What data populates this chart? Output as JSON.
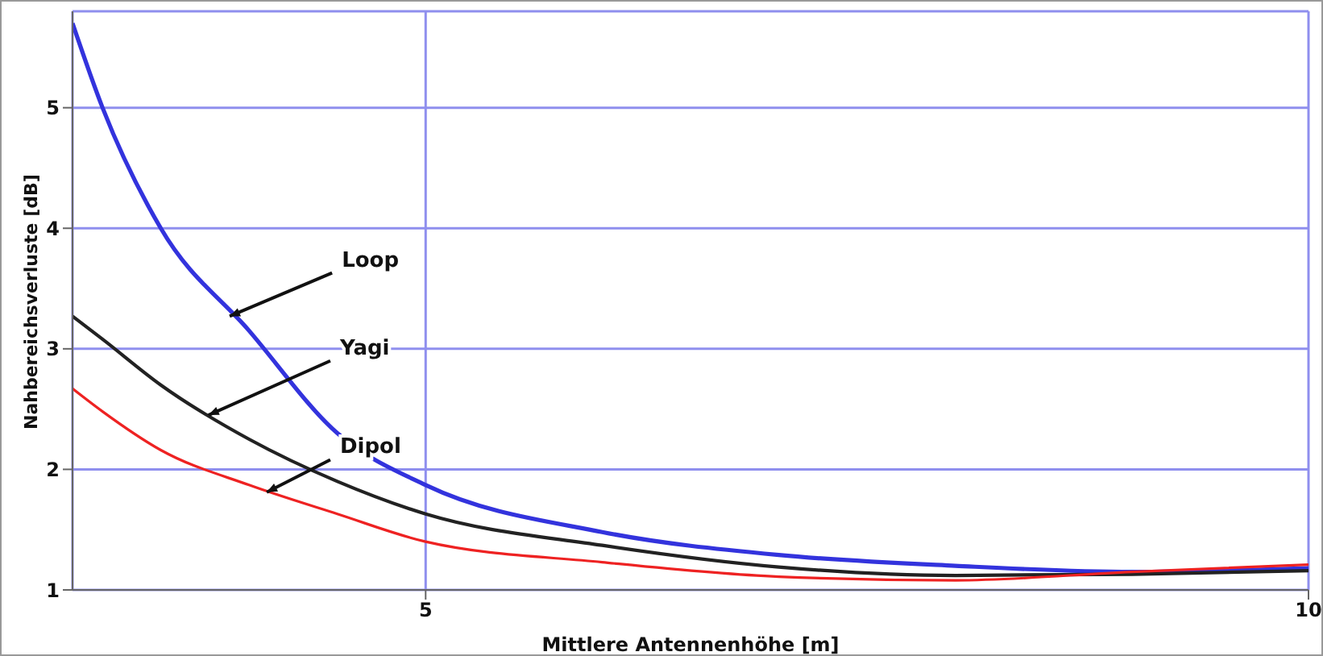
{
  "chart_data": {
    "type": "line",
    "xlabel": "Mittlere Antennenhöhe [m]",
    "ylabel": "Nahbereichsverluste  [dB]",
    "x": [
      3,
      3.17,
      3.5,
      4,
      4.5,
      5,
      6,
      7,
      8,
      9,
      10
    ],
    "series": [
      {
        "color": "#3333dd",
        "values": [
          5.7,
          5.0,
          4.0,
          3.15,
          2.3,
          1.87,
          1.48,
          1.29,
          1.2,
          1.15,
          1.18
        ]
      },
      {
        "color": "#222222",
        "values": [
          3.27,
          3.08,
          2.7,
          2.25,
          1.9,
          1.63,
          1.37,
          1.19,
          1.12,
          1.13,
          1.16
        ]
      },
      {
        "color": "#ee2222",
        "values": [
          2.67,
          2.48,
          2.16,
          1.87,
          1.63,
          1.4,
          1.23,
          1.11,
          1.08,
          1.15,
          1.21
        ]
      }
    ],
    "xlim": [
      3,
      10
    ],
    "xticks": [
      5,
      10
    ],
    "ylim": [
      1,
      5.8
    ],
    "yticks": [
      1,
      2,
      3,
      4,
      5
    ],
    "grid": true,
    "legend": false,
    "marker": "none",
    "line_style": "solid",
    "annotations": [
      {
        "text": "Loop",
        "x": 3.89,
        "y": 3.27
      },
      {
        "text": "Yagi",
        "x": 3.77,
        "y": 2.45
      },
      {
        "text": "Dipol",
        "x": 4.1,
        "y": 1.81
      }
    ]
  }
}
